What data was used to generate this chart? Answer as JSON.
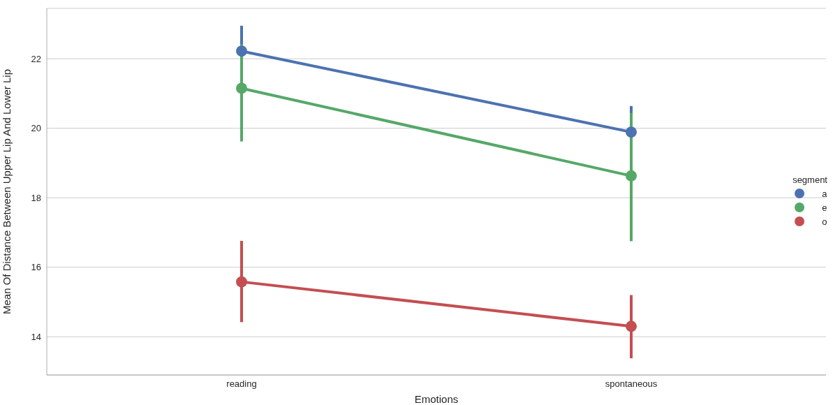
{
  "chart_data": {
    "type": "line",
    "xlabel": "Emotions",
    "ylabel": "Mean Of Distance Between Upper Lip And Lower Lip",
    "legend_title": "segment",
    "categories": [
      "reading",
      "spontaneous"
    ],
    "series": [
      {
        "name": "a",
        "color": "#4c72b0",
        "values": [
          22.22,
          19.89
        ],
        "errors": [
          [
            21.5,
            22.95
          ],
          [
            19.2,
            20.64
          ]
        ]
      },
      {
        "name": "e",
        "color": "#55a868",
        "values": [
          21.15,
          18.63
        ],
        "errors": [
          [
            19.62,
            22.42
          ],
          [
            16.75,
            20.44
          ]
        ]
      },
      {
        "name": "o",
        "color": "#c44e52",
        "values": [
          15.58,
          14.3
        ],
        "errors": [
          [
            14.42,
            16.76
          ],
          [
            13.38,
            15.2
          ]
        ]
      }
    ],
    "ylim": [
      12.9,
      23.45
    ],
    "yticks": [
      14,
      16,
      18,
      20,
      22
    ],
    "grid": true,
    "legend": "right",
    "marker": "circle"
  }
}
